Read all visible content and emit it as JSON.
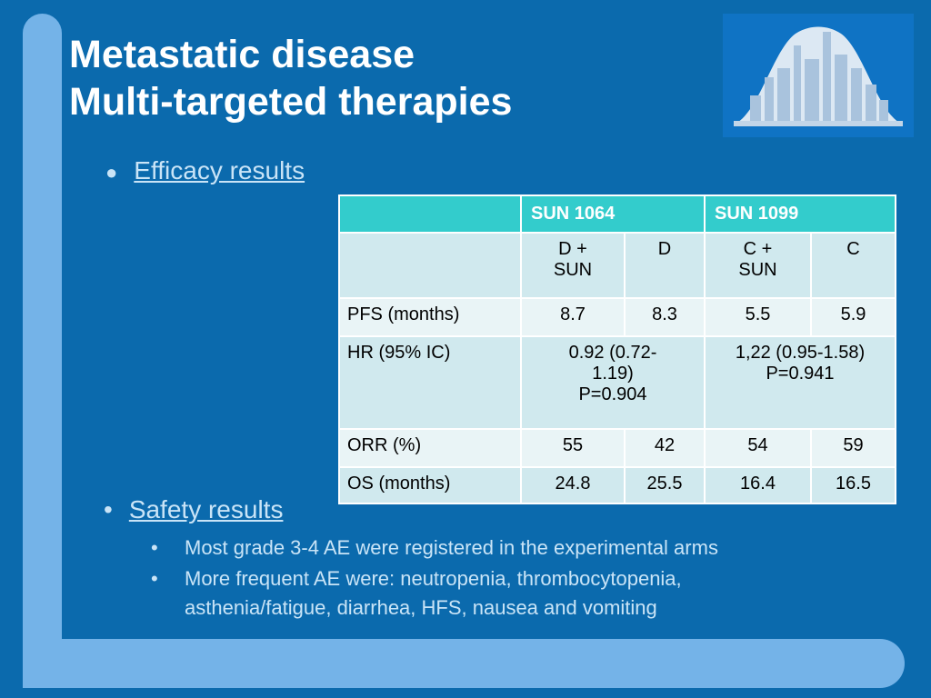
{
  "title": [
    "Metastatic disease",
    "Multi-targeted therapies"
  ],
  "bullets": [
    {
      "text": "Efficacy results"
    },
    {
      "text": "Safety results",
      "sub": [
        "Most grade 3-4 AE were registered in the experimental arms",
        "More frequent AE were: neutropenia, thrombocytopenia, asthenia/fatigue, diarrhea, HFS, nausea and vomiting"
      ]
    }
  ],
  "table": {
    "header": [
      "SUN 1064",
      "SUN 1099"
    ],
    "subheader": [
      "D + SUN",
      "D",
      "C + SUN",
      "C"
    ],
    "rows": [
      [
        "PFS (months)",
        "8.7",
        "8.3",
        "5.5",
        "5.9"
      ],
      [
        "HR (95% IC)",
        "0.92 (0.72-1.19)\nP=0.904",
        "1,22 (0.95-1.58)\nP=0.941"
      ],
      [
        "ORR (%)",
        "55",
        "42",
        "54",
        "59"
      ],
      [
        "OS (months)",
        "24.8",
        "25.5",
        "16.4",
        "16.5"
      ]
    ]
  }
}
